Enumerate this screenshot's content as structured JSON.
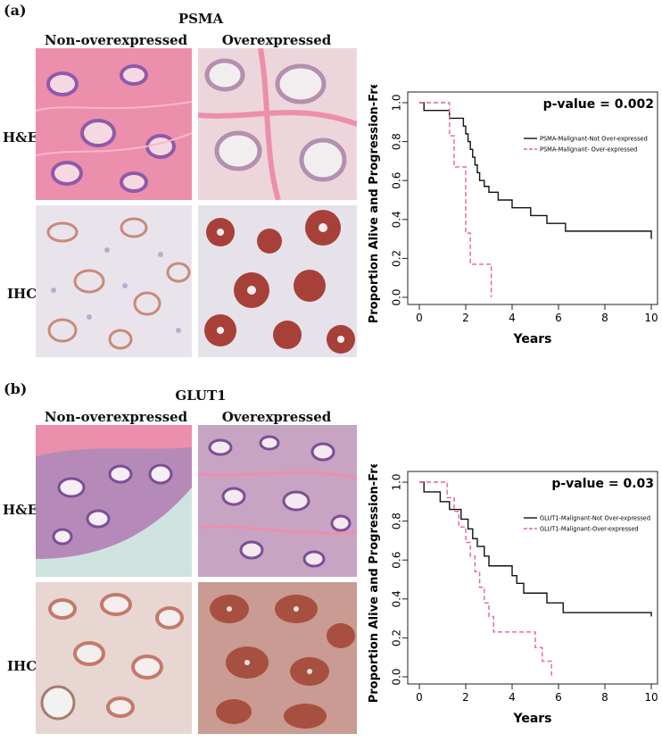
{
  "panels": [
    {
      "label": "(a)",
      "marker": "PSMA",
      "columns": [
        "Non-overexpressed",
        "Overexpressed"
      ],
      "rows": [
        "H&E",
        "IHC"
      ]
    },
    {
      "label": "(b)",
      "marker": "GLUT1",
      "columns": [
        "Non-overexpressed",
        "Overexpressed"
      ],
      "rows": [
        "H&E",
        "IHC"
      ]
    }
  ],
  "colors": {
    "not_over": "#111111",
    "over": "#e8648a",
    "he_stroma": "#ef9ab4",
    "he_nuclei": "#6a4c9c",
    "ihc_stain": "#a8403a",
    "ihc_bg": "#e9e4ec"
  },
  "chart_data": [
    {
      "type": "line",
      "title": "",
      "annotation": "p-value = 0.002",
      "xlabel": "Years",
      "ylabel": "Proportion Alive and Progression-Free",
      "xlim": [
        0,
        10
      ],
      "ylim": [
        0,
        1
      ],
      "xticks": [
        "0",
        "2",
        "4",
        "6",
        "8",
        "10"
      ],
      "yticks": [
        "0.0",
        "0.2",
        "0.4",
        "0.6",
        "0.8",
        "1.0"
      ],
      "legend_position": "top-right",
      "series": [
        {
          "name": "PSMA-Malignant-Not Over-expressed",
          "style": "solid",
          "x": [
            0,
            0.2,
            0.9,
            1.3,
            1.8,
            1.9,
            2.0,
            2.1,
            2.2,
            2.3,
            2.4,
            2.5,
            2.6,
            2.8,
            3.0,
            3.4,
            4.0,
            4.8,
            5.5,
            6.3,
            10
          ],
          "y": [
            1.0,
            0.96,
            0.96,
            0.92,
            0.92,
            0.88,
            0.84,
            0.8,
            0.76,
            0.72,
            0.68,
            0.64,
            0.6,
            0.57,
            0.54,
            0.5,
            0.46,
            0.42,
            0.38,
            0.34,
            0.3
          ]
        },
        {
          "name": "PSMA-Malignant- Over-expressed",
          "style": "dashed",
          "x": [
            0,
            1.1,
            1.3,
            1.5,
            2.0,
            2.2,
            3.0,
            3.1
          ],
          "y": [
            1.0,
            1.0,
            0.83,
            0.67,
            0.33,
            0.17,
            0.17,
            0.0
          ]
        }
      ]
    },
    {
      "type": "line",
      "title": "",
      "annotation": "p-value = 0.03",
      "xlabel": "Years",
      "ylabel": "Proportion Alive and Progression-Free",
      "xlim": [
        0,
        10
      ],
      "ylim": [
        0,
        1
      ],
      "xticks": [
        "0",
        "2",
        "4",
        "6",
        "8",
        "10"
      ],
      "yticks": [
        "0.0",
        "0.2",
        "0.4",
        "0.6",
        "0.8",
        "1.0"
      ],
      "legend_position": "top-right",
      "series": [
        {
          "name": "GLUT1-Malignant-Not Over-expressed",
          "style": "solid",
          "x": [
            0,
            0.2,
            0.9,
            1.3,
            1.8,
            2.1,
            2.3,
            2.5,
            2.8,
            3.0,
            4.0,
            4.2,
            4.5,
            5.5,
            6.2,
            10
          ],
          "y": [
            1.0,
            0.95,
            0.9,
            0.86,
            0.81,
            0.76,
            0.71,
            0.67,
            0.62,
            0.57,
            0.52,
            0.48,
            0.43,
            0.38,
            0.33,
            0.31
          ]
        },
        {
          "name": "GLUT1-Malignant-Over-expressed",
          "style": "dashed",
          "x": [
            0,
            1.2,
            1.5,
            1.7,
            2.0,
            2.2,
            2.4,
            2.6,
            2.8,
            3.0,
            3.2,
            5.0,
            5.3,
            5.7
          ],
          "y": [
            1.0,
            0.92,
            0.85,
            0.77,
            0.69,
            0.62,
            0.54,
            0.46,
            0.38,
            0.31,
            0.23,
            0.15,
            0.08,
            0.0
          ]
        }
      ]
    }
  ]
}
